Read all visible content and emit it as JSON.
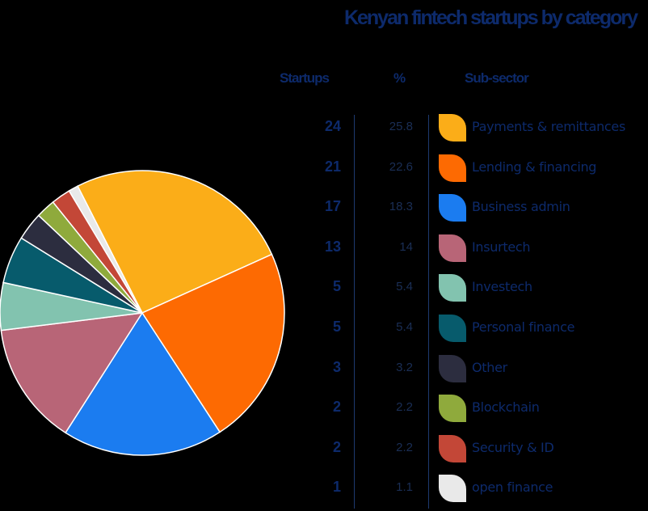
{
  "chart_data": {
    "type": "pie",
    "title": "Kenyan fintech startups by category",
    "columns": {
      "count": "Startups",
      "percent": "%",
      "label": "Sub-sector"
    },
    "slices": [
      {
        "label": "Payments & remittances",
        "count": "24",
        "percent": "25.8",
        "value": 25.8,
        "color": "#fbad18"
      },
      {
        "label": "Lending & financing",
        "count": "21",
        "percent": "22.6",
        "value": 22.6,
        "color": "#fd6a02"
      },
      {
        "label": "Business admin",
        "count": "17",
        "percent": "18.3",
        "value": 18.3,
        "color": "#1b7cf0"
      },
      {
        "label": "Insurtech",
        "count": "13",
        "percent": "14",
        "value": 14,
        "color": "#b86577"
      },
      {
        "label": "Investech",
        "count": "5",
        "percent": "5.4",
        "value": 5.4,
        "color": "#82c3af"
      },
      {
        "label": "Personal finance",
        "count": "5",
        "percent": "5.4",
        "value": 5.4,
        "color": "#075b6c"
      },
      {
        "label": "Other",
        "count": "3",
        "percent": "3.2",
        "value": 3.2,
        "color": "#2c2d3f"
      },
      {
        "label": "Blockchain",
        "count": "2",
        "percent": "2.2",
        "value": 2.2,
        "color": "#8faa3c"
      },
      {
        "label": "Security & ID",
        "count": "2",
        "percent": "2.2",
        "value": 2.2,
        "color": "#c34737"
      },
      {
        "label": "open finance",
        "count": "1",
        "percent": "1.1",
        "value": 1.1,
        "color": "#e9e9e9"
      }
    ]
  }
}
